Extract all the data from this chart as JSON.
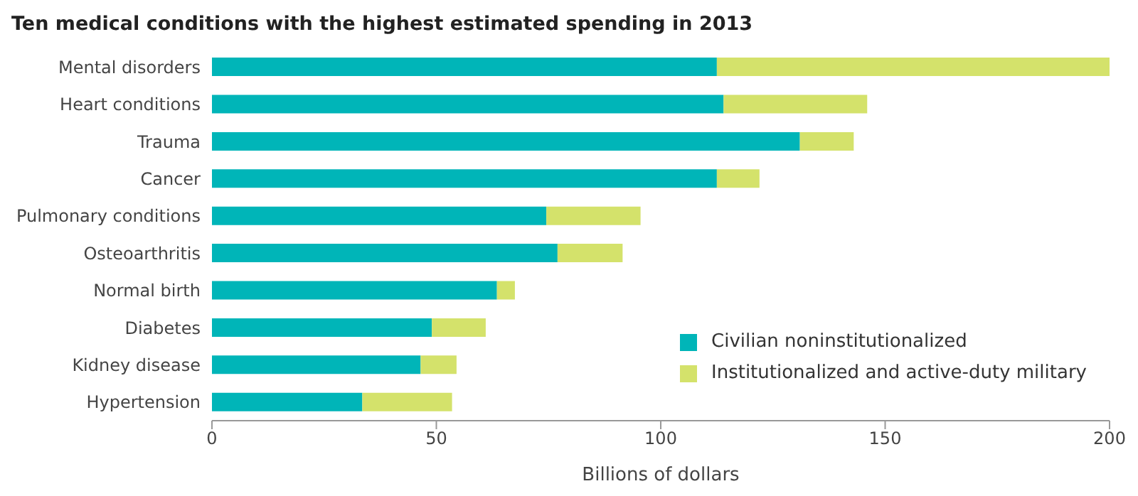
{
  "chart_data": {
    "type": "bar",
    "orientation": "horizontal",
    "stacked": true,
    "title": "Ten medical conditions with the highest estimated spending in 2013",
    "xlabel": "Billions of dollars",
    "categories": [
      "Mental disorders",
      "Heart conditions",
      "Trauma",
      "Cancer",
      "Pulmonary conditions",
      "Osteoarthritis",
      "Normal birth",
      "Diabetes",
      "Kidney disease",
      "Hypertension"
    ],
    "series": [
      {
        "name": "Civilian noninstitutionalized",
        "color": "#00b5b8",
        "values": [
          112.5,
          114,
          131,
          112.5,
          74.5,
          77,
          63.5,
          49,
          46.5,
          33.5
        ]
      },
      {
        "name": "Institutionalized and active-duty military",
        "color": "#d4e26b",
        "values": [
          87.5,
          32,
          12,
          9.5,
          21,
          14.5,
          4,
          12,
          8,
          20
        ]
      }
    ],
    "xlim": [
      0,
      200
    ],
    "xticks": [
      0,
      50,
      100,
      150,
      200
    ],
    "grid": false,
    "legend": "bottom right"
  }
}
